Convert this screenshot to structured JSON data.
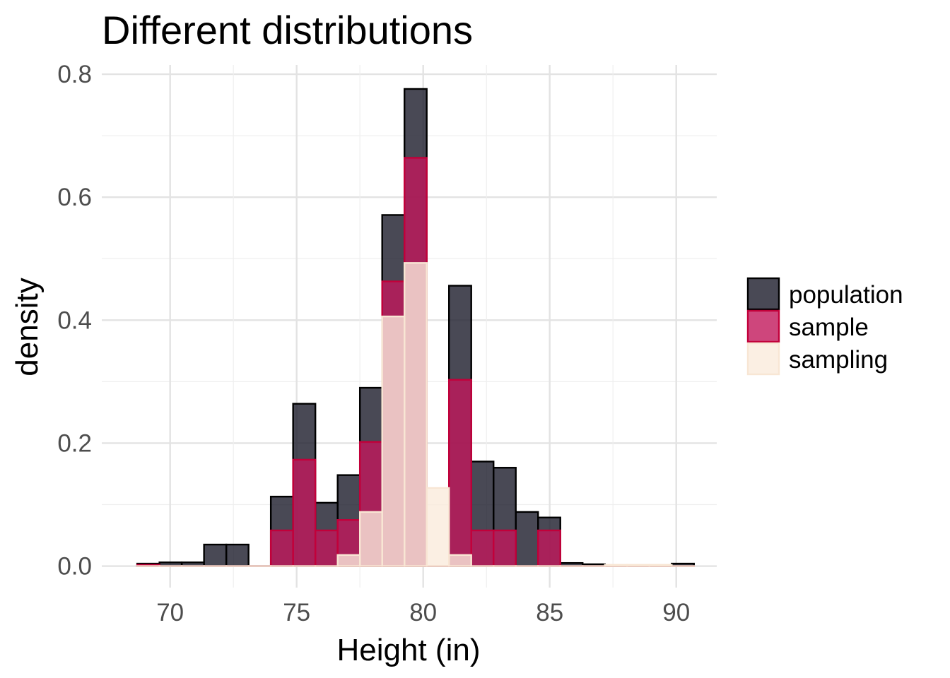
{
  "chart_data": {
    "type": "bar",
    "title": "Different distributions",
    "xlabel": "Height (in)",
    "ylabel": "density",
    "xlim": [
      67.3,
      91.6
    ],
    "ylim": [
      -0.035,
      0.815
    ],
    "xticks": [
      70,
      75,
      80,
      85,
      90
    ],
    "xtick_labels": [
      "70",
      "75",
      "80",
      "85",
      "90"
    ],
    "yticks": [
      0.0,
      0.2,
      0.4,
      0.6,
      0.8
    ],
    "ytick_labels": [
      "0.0",
      "0.2",
      "0.4",
      "0.6",
      "0.8"
    ],
    "grid": true,
    "legend_position": "right",
    "bin_edges": [
      68.7,
      69.58,
      70.46,
      71.34,
      72.22,
      73.1,
      73.98,
      74.86,
      75.74,
      76.62,
      77.5,
      78.38,
      79.26,
      80.14,
      81.02,
      81.9,
      82.78,
      83.66,
      84.54,
      85.42,
      86.3,
      87.18,
      88.06,
      88.94,
      89.82,
      90.7
    ],
    "series": [
      {
        "name": "population",
        "fill": "#1b1b2b",
        "stroke": "#000000",
        "values": [
          0.004,
          0.006,
          0.006,
          0.035,
          0.035,
          0.0,
          0.113,
          0.264,
          0.103,
          0.148,
          0.29,
          0.571,
          0.776,
          0.0,
          0.456,
          0.17,
          0.16,
          0.088,
          0.079,
          0.005,
          0.003,
          0.0,
          0.0,
          0.0,
          0.004
        ]
      },
      {
        "name": "sample",
        "fill": "#c2185b",
        "stroke": "#c2003a",
        "values": [
          0.002,
          0.0,
          0.0,
          0.0,
          0.0,
          0.0,
          0.058,
          0.173,
          0.058,
          0.075,
          0.202,
          0.463,
          0.664,
          0.0,
          0.303,
          0.058,
          0.058,
          0.0,
          0.058,
          0.0,
          0.0,
          0.0,
          0.0,
          0.0,
          0.0
        ]
      },
      {
        "name": "sampling",
        "fill": "#faebdc",
        "stroke": "#f8e6d4",
        "values": [
          0.0,
          0.0,
          0.0,
          0.0,
          0.0,
          0.0,
          0.0,
          0.0,
          0.0,
          0.018,
          0.088,
          0.406,
          0.493,
          0.127,
          0.018,
          0.0,
          0.0,
          0.0,
          0.0,
          0.0,
          0.0,
          0.002,
          0.002,
          0.002,
          0.0
        ]
      }
    ]
  }
}
